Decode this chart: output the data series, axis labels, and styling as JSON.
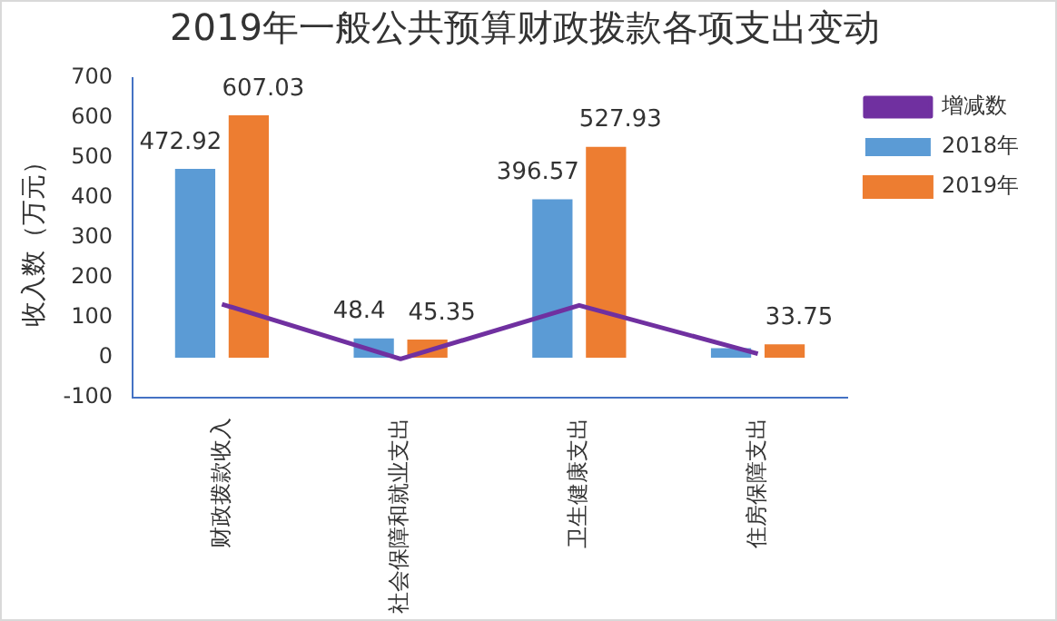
{
  "chart_data": {
    "type": "bar",
    "title": "2019年一般公共预算财政拨款各项支出变动",
    "ylabel": "收入数（万元）",
    "categories": [
      "财政拨款收入",
      "社会保障和就业支出",
      "卫生健康支出",
      "住房保障支出"
    ],
    "series": [
      {
        "name": "2018年",
        "color": "#5b9bd5",
        "values": [
          472.92,
          48.4,
          396.57,
          24
        ],
        "value_labels": [
          "472.92",
          "48.4",
          "396.57",
          null
        ]
      },
      {
        "name": "2019年",
        "color": "#ed7d31",
        "values": [
          607.03,
          45.35,
          527.93,
          33.75
        ],
        "value_labels": [
          "607.03",
          "45.35",
          "527.93",
          "33.75"
        ]
      },
      {
        "name": "增减数",
        "type": "line",
        "color": "#7030a0",
        "values": [
          134,
          -3,
          131,
          10
        ],
        "marker": "none"
      }
    ],
    "ylim": [
      -100,
      700
    ],
    "yticks": [
      -100,
      0,
      100,
      200,
      300,
      400,
      500,
      600,
      700
    ],
    "grid": false,
    "legend": "right"
  }
}
